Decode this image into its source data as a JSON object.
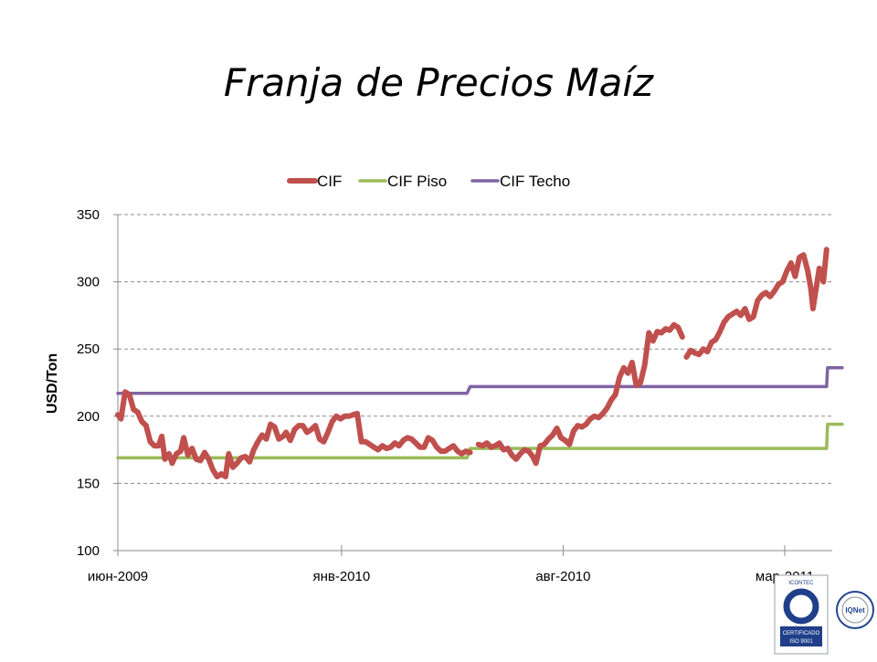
{
  "slide": {
    "title": "Franja de Precios Maíz"
  },
  "logos": {
    "icontec": {
      "lines": [
        "ICONTEC",
        "CERTIFICADO",
        "ISO 9001"
      ],
      "colors": {
        "blue": "#1f3f8a",
        "gray": "#8a8f99"
      }
    },
    "iqnet": {
      "lines": [
        "IQNet"
      ],
      "colors": {
        "blue": "#24478f"
      }
    }
  },
  "chart_data": {
    "type": "line",
    "title": "",
    "xlabel": "",
    "ylabel": "USD/Ton",
    "ylim": [
      100,
      350
    ],
    "yticks": [
      100,
      150,
      200,
      250,
      300,
      350
    ],
    "xlim": [
      "2009-06-01",
      "2011-03-31"
    ],
    "xticks": [
      {
        "date": "2009-06-01",
        "label": "июн-2009"
      },
      {
        "date": "2010-01-01",
        "label": "янв-2010"
      },
      {
        "date": "2010-08-01",
        "label": "авг-2010"
      },
      {
        "date": "2011-03-01",
        "label": "мар-2011"
      }
    ],
    "grid": "horizontal-dashed",
    "legend_position": "top",
    "series": [
      {
        "name": "CIF",
        "color": "#c0504d",
        "segments": [
          [
            [
              "2009-06-01",
              201
            ],
            [
              "2009-06-04",
              198
            ],
            [
              "2009-06-08",
              218
            ],
            [
              "2009-06-12",
              216
            ],
            [
              "2009-06-16",
              205
            ],
            [
              "2009-06-20",
              203
            ],
            [
              "2009-06-24",
              196
            ],
            [
              "2009-06-28",
              193
            ],
            [
              "2009-07-02",
              181
            ],
            [
              "2009-07-06",
              178
            ],
            [
              "2009-07-10",
              178
            ],
            [
              "2009-07-13",
              185
            ],
            [
              "2009-07-16",
              168
            ],
            [
              "2009-07-20",
              172
            ],
            [
              "2009-07-23",
              165
            ],
            [
              "2009-07-27",
              172
            ],
            [
              "2009-07-31",
              174
            ],
            [
              "2009-08-03",
              184
            ],
            [
              "2009-08-07",
              171
            ],
            [
              "2009-08-11",
              176
            ],
            [
              "2009-08-15",
              168
            ],
            [
              "2009-08-19",
              167
            ],
            [
              "2009-08-23",
              173
            ],
            [
              "2009-08-27",
              168
            ],
            [
              "2009-08-31",
              160
            ],
            [
              "2009-09-04",
              155
            ],
            [
              "2009-09-08",
              157
            ],
            [
              "2009-09-12",
              155
            ],
            [
              "2009-09-15",
              172
            ],
            [
              "2009-09-19",
              162
            ],
            [
              "2009-09-23",
              165
            ],
            [
              "2009-09-27",
              169
            ],
            [
              "2009-10-01",
              170
            ],
            [
              "2009-10-05",
              166
            ],
            [
              "2009-10-09",
              175
            ],
            [
              "2009-10-13",
              181
            ],
            [
              "2009-10-17",
              186
            ],
            [
              "2009-10-21",
              183
            ],
            [
              "2009-10-25",
              194
            ],
            [
              "2009-10-29",
              192
            ],
            [
              "2009-11-02",
              183
            ],
            [
              "2009-11-06",
              185
            ],
            [
              "2009-11-09",
              188
            ],
            [
              "2009-11-13",
              182
            ],
            [
              "2009-11-17",
              190
            ],
            [
              "2009-11-21",
              193
            ],
            [
              "2009-11-25",
              193
            ],
            [
              "2009-11-29",
              188
            ],
            [
              "2009-12-03",
              190
            ],
            [
              "2009-12-07",
              193
            ],
            [
              "2009-12-11",
              183
            ],
            [
              "2009-12-15",
              181
            ],
            [
              "2009-12-19",
              188
            ],
            [
              "2009-12-23",
              196
            ],
            [
              "2009-12-27",
              200
            ],
            [
              "2009-12-31",
              198
            ],
            [
              "2010-01-04",
              200
            ],
            [
              "2010-01-08",
              200
            ],
            [
              "2010-01-12",
              201
            ],
            [
              "2010-01-16",
              202
            ],
            [
              "2010-01-20",
              181
            ],
            [
              "2010-01-24",
              181
            ],
            [
              "2010-01-28",
              179
            ],
            [
              "2010-02-01",
              177
            ],
            [
              "2010-02-05",
              175
            ],
            [
              "2010-02-09",
              178
            ],
            [
              "2010-02-13",
              176
            ],
            [
              "2010-02-17",
              177
            ],
            [
              "2010-02-21",
              180
            ],
            [
              "2010-02-25",
              178
            ],
            [
              "2010-03-01",
              182
            ],
            [
              "2010-03-05",
              184
            ],
            [
              "2010-03-09",
              183
            ],
            [
              "2010-03-13",
              180
            ],
            [
              "2010-03-17",
              177
            ],
            [
              "2010-03-21",
              177
            ],
            [
              "2010-03-25",
              184
            ],
            [
              "2010-03-29",
              182
            ],
            [
              "2010-04-02",
              177
            ],
            [
              "2010-04-06",
              174
            ],
            [
              "2010-04-10",
              174
            ],
            [
              "2010-04-14",
              176
            ],
            [
              "2010-04-18",
              178
            ],
            [
              "2010-04-22",
              174
            ],
            [
              "2010-04-26",
              172
            ],
            [
              "2010-04-30",
              174
            ],
            [
              "2010-05-04",
              173
            ]
          ],
          [
            [
              "2010-05-12",
              179
            ],
            [
              "2010-05-16",
              178
            ],
            [
              "2010-05-20",
              180
            ],
            [
              "2010-05-24",
              177
            ],
            [
              "2010-05-28",
              178
            ],
            [
              "2010-06-01",
              180
            ],
            [
              "2010-06-05",
              175
            ],
            [
              "2010-06-09",
              176
            ],
            [
              "2010-06-13",
              171
            ],
            [
              "2010-06-17",
              168
            ],
            [
              "2010-06-21",
              172
            ],
            [
              "2010-06-25",
              175
            ],
            [
              "2010-06-29",
              174
            ],
            [
              "2010-07-03",
              170
            ],
            [
              "2010-07-06",
              165
            ],
            [
              "2010-07-10",
              178
            ],
            [
              "2010-07-14",
              179
            ],
            [
              "2010-07-18",
              183
            ],
            [
              "2010-07-22",
              186
            ],
            [
              "2010-07-26",
              191
            ],
            [
              "2010-07-30",
              184
            ],
            [
              "2010-08-03",
              182
            ],
            [
              "2010-08-07",
              179
            ],
            [
              "2010-08-11",
              189
            ],
            [
              "2010-08-15",
              193
            ],
            [
              "2010-08-19",
              192
            ],
            [
              "2010-08-23",
              194
            ],
            [
              "2010-08-27",
              198
            ],
            [
              "2010-08-31",
              200
            ],
            [
              "2010-09-04",
              199
            ],
            [
              "2010-09-08",
              202
            ],
            [
              "2010-09-12",
              206
            ],
            [
              "2010-09-16",
              212
            ],
            [
              "2010-09-20",
              216
            ],
            [
              "2010-09-24",
              229
            ],
            [
              "2010-09-28",
              236
            ],
            [
              "2010-10-02",
              232
            ],
            [
              "2010-10-06",
              240
            ],
            [
              "2010-10-10",
              223
            ],
            [
              "2010-10-14",
              225
            ],
            [
              "2010-10-18",
              238
            ],
            [
              "2010-10-22",
              262
            ],
            [
              "2010-10-26",
              256
            ],
            [
              "2010-10-30",
              263
            ],
            [
              "2010-11-03",
              262
            ],
            [
              "2010-11-07",
              265
            ],
            [
              "2010-11-11",
              264
            ],
            [
              "2010-11-15",
              268
            ],
            [
              "2010-11-19",
              266
            ],
            [
              "2010-11-23",
              259
            ]
          ],
          [
            [
              "2010-11-27",
              244
            ],
            [
              "2010-12-01",
              249
            ],
            [
              "2010-12-05",
              247
            ],
            [
              "2010-12-09",
              246
            ],
            [
              "2010-12-13",
              250
            ],
            [
              "2010-12-17",
              248
            ],
            [
              "2010-12-21",
              255
            ],
            [
              "2010-12-25",
              257
            ],
            [
              "2010-12-29",
              263
            ],
            [
              "2011-01-02",
              270
            ],
            [
              "2011-01-06",
              274
            ],
            [
              "2011-01-10",
              276
            ],
            [
              "2011-01-14",
              278
            ],
            [
              "2011-01-18",
              275
            ],
            [
              "2011-01-22",
              280
            ],
            [
              "2011-01-26",
              272
            ],
            [
              "2011-01-30",
              274
            ],
            [
              "2011-02-03",
              286
            ],
            [
              "2011-02-07",
              290
            ],
            [
              "2011-02-11",
              292
            ],
            [
              "2011-02-15",
              289
            ],
            [
              "2011-02-19",
              293
            ],
            [
              "2011-02-23",
              298
            ],
            [
              "2011-02-27",
              300
            ],
            [
              "2011-03-03",
              308
            ],
            [
              "2011-03-07",
              314
            ],
            [
              "2011-03-11",
              304
            ],
            [
              "2011-03-15",
              318
            ],
            [
              "2011-03-19",
              320
            ],
            [
              "2011-03-23",
              308
            ],
            [
              "2011-03-26",
              295
            ],
            [
              "2011-03-28",
              280
            ],
            [
              "2011-03-30",
              290
            ],
            [
              "2011-04-03",
              310
            ],
            [
              "2011-04-07",
              300
            ],
            [
              "2011-04-10",
              324
            ]
          ]
        ]
      },
      {
        "name": "CIF Piso",
        "color": "#9bbb59",
        "points": [
          [
            "2009-06-01",
            169
          ],
          [
            "2010-05-01",
            169
          ],
          [
            "2010-05-04",
            176
          ],
          [
            "2011-04-10",
            176
          ],
          [
            "2011-04-11",
            194
          ],
          [
            "2011-04-25",
            194
          ]
        ]
      },
      {
        "name": "CIF Techo",
        "color": "#8064a2",
        "points": [
          [
            "2009-06-01",
            217
          ],
          [
            "2010-05-01",
            217
          ],
          [
            "2010-05-04",
            222
          ],
          [
            "2011-04-10",
            222
          ],
          [
            "2011-04-11",
            236
          ],
          [
            "2011-04-25",
            236
          ]
        ]
      }
    ]
  }
}
